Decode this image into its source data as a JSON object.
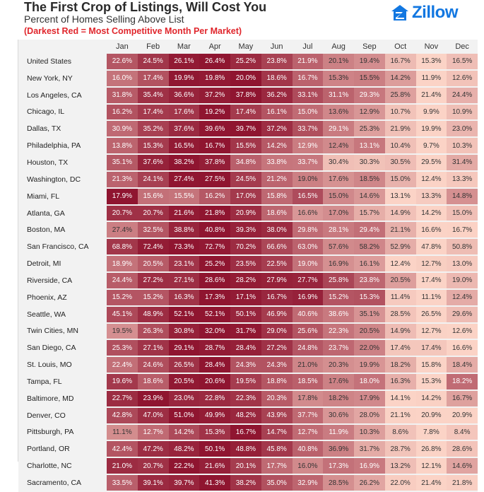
{
  "title": "The First Crop of Listings, Will Cost You",
  "subtitle": "Percent of Homes Selling Above List",
  "note": "(Darkest Red = Most Competitive Month Per Market)",
  "logo": {
    "text": "Zillow",
    "icon": "zillow-house-icon",
    "color": "#1277e1"
  },
  "colors": {
    "darkest": "#8f1530",
    "light": "#fbd3c6",
    "note": "#e0262c",
    "background": "#f2f2f2"
  },
  "chart_data": {
    "type": "heatmap",
    "title": "The First Crop of Listings, Will Cost You",
    "subtitle": "Percent of Homes Selling Above List",
    "annotation": "(Darkest Red = Most Competitive Month Per Market)",
    "columns": [
      "Jan",
      "Feb",
      "Mar",
      "Apr",
      "May",
      "Jun",
      "Jul",
      "Aug",
      "Sep",
      "Oct",
      "Nov",
      "Dec"
    ],
    "rows": [
      {
        "market": "United States",
        "values": [
          "22.6%",
          "24.5%",
          "26.1%",
          "26.4%",
          "25.2%",
          "23.8%",
          "21.9%",
          "20.1%",
          "19.4%",
          "16.7%",
          "15.3%",
          "16.5%"
        ]
      },
      {
        "market": "New York, NY",
        "values": [
          "16.0%",
          "17.4%",
          "19.9%",
          "19.8%",
          "20.0%",
          "18.6%",
          "16.7%",
          "15.3%",
          "15.5%",
          "14.2%",
          "11.9%",
          "12.6%"
        ]
      },
      {
        "market": "Los Angeles, CA",
        "values": [
          "31.8%",
          "35.4%",
          "36.6%",
          "37.2%",
          "37.8%",
          "36.2%",
          "33.1%",
          "31.1%",
          "29.3%",
          "25.8%",
          "21.4%",
          "24.4%"
        ]
      },
      {
        "market": "Chicago, IL",
        "values": [
          "16.2%",
          "17.4%",
          "17.6%",
          "19.2%",
          "17.4%",
          "16.1%",
          "15.0%",
          "13.6%",
          "12.9%",
          "10.7%",
          "9.9%",
          "10.9%"
        ]
      },
      {
        "market": "Dallas, TX",
        "values": [
          "30.9%",
          "35.2%",
          "37.6%",
          "39.6%",
          "39.7%",
          "37.2%",
          "33.7%",
          "29.1%",
          "25.3%",
          "21.9%",
          "19.9%",
          "23.0%"
        ]
      },
      {
        "market": "Philadelphia, PA",
        "values": [
          "13.8%",
          "15.3%",
          "16.5%",
          "16.7%",
          "15.5%",
          "14.2%",
          "12.9%",
          "12.4%",
          "13.1%",
          "10.4%",
          "9.7%",
          "10.3%"
        ]
      },
      {
        "market": "Houston, TX",
        "values": [
          "35.1%",
          "37.6%",
          "38.2%",
          "37.8%",
          "34.8%",
          "33.8%",
          "33.7%",
          "30.4%",
          "30.3%",
          "30.5%",
          "29.5%",
          "31.4%"
        ]
      },
      {
        "market": "Washington, DC",
        "values": [
          "21.3%",
          "24.1%",
          "27.4%",
          "27.5%",
          "24.5%",
          "21.2%",
          "19.0%",
          "17.6%",
          "18.5%",
          "15.0%",
          "12.4%",
          "13.3%"
        ]
      },
      {
        "market": "Miami, FL",
        "values": [
          "17.9%",
          "15.6%",
          "15.5%",
          "16.2%",
          "17.0%",
          "15.8%",
          "16.5%",
          "15.0%",
          "14.6%",
          "13.1%",
          "13.3%",
          "14.8%"
        ]
      },
      {
        "market": "Atlanta, GA",
        "values": [
          "20.7%",
          "20.7%",
          "21.6%",
          "21.8%",
          "20.9%",
          "18.6%",
          "16.6%",
          "17.0%",
          "15.7%",
          "14.9%",
          "14.2%",
          "15.0%"
        ]
      },
      {
        "market": "Boston, MA",
        "values": [
          "27.4%",
          "32.5%",
          "38.8%",
          "40.8%",
          "39.3%",
          "38.0%",
          "29.8%",
          "28.1%",
          "29.4%",
          "21.1%",
          "16.6%",
          "16.7%"
        ]
      },
      {
        "market": "San Francisco, CA",
        "values": [
          "68.8%",
          "72.4%",
          "73.3%",
          "72.7%",
          "70.2%",
          "66.6%",
          "63.0%",
          "57.6%",
          "58.2%",
          "52.9%",
          "47.8%",
          "50.8%"
        ]
      },
      {
        "market": "Detroit, MI",
        "values": [
          "18.9%",
          "20.5%",
          "23.1%",
          "25.2%",
          "23.5%",
          "22.5%",
          "19.0%",
          "16.9%",
          "16.1%",
          "12.4%",
          "12.7%",
          "13.0%"
        ]
      },
      {
        "market": "Riverside, CA",
        "values": [
          "24.4%",
          "27.2%",
          "27.1%",
          "28.6%",
          "28.2%",
          "27.9%",
          "27.7%",
          "25.8%",
          "23.8%",
          "20.5%",
          "17.4%",
          "19.0%"
        ]
      },
      {
        "market": "Phoenix, AZ",
        "values": [
          "15.2%",
          "15.2%",
          "16.3%",
          "17.3%",
          "17.1%",
          "16.7%",
          "16.9%",
          "15.2%",
          "15.3%",
          "11.4%",
          "11.1%",
          "12.4%"
        ]
      },
      {
        "market": "Seattle, WA",
        "values": [
          "45.1%",
          "48.9%",
          "52.1%",
          "52.1%",
          "50.1%",
          "46.9%",
          "40.6%",
          "38.6%",
          "35.1%",
          "28.5%",
          "26.5%",
          "29.6%"
        ]
      },
      {
        "market": "Twin Cities, MN",
        "values": [
          "19.5%",
          "26.3%",
          "30.8%",
          "32.0%",
          "31.7%",
          "29.0%",
          "25.6%",
          "22.3%",
          "20.5%",
          "14.9%",
          "12.7%",
          "12.6%"
        ]
      },
      {
        "market": "San Diego, CA",
        "values": [
          "25.3%",
          "27.1%",
          "29.1%",
          "28.7%",
          "28.4%",
          "27.2%",
          "24.8%",
          "23.7%",
          "22.0%",
          "17.4%",
          "17.4%",
          "16.6%"
        ]
      },
      {
        "market": "St. Louis, MO",
        "values": [
          "22.4%",
          "24.6%",
          "26.5%",
          "28.4%",
          "24.3%",
          "24.3%",
          "21.0%",
          "20.3%",
          "19.9%",
          "18.2%",
          "15.8%",
          "18.4%"
        ]
      },
      {
        "market": "Tampa, FL",
        "values": [
          "19.6%",
          "18.6%",
          "20.5%",
          "20.6%",
          "19.5%",
          "18.8%",
          "18.5%",
          "17.6%",
          "18.0%",
          "16.3%",
          "15.3%",
          "18.2%"
        ]
      },
      {
        "market": "Baltimore, MD",
        "values": [
          "22.7%",
          "23.9%",
          "23.0%",
          "22.8%",
          "22.3%",
          "20.3%",
          "17.8%",
          "18.2%",
          "17.9%",
          "14.1%",
          "14.2%",
          "16.7%"
        ]
      },
      {
        "market": "Denver, CO",
        "values": [
          "42.8%",
          "47.0%",
          "51.0%",
          "49.9%",
          "48.2%",
          "43.9%",
          "37.7%",
          "30.6%",
          "28.0%",
          "21.1%",
          "20.9%",
          "20.9%"
        ]
      },
      {
        "market": "Pittsburgh, PA",
        "values": [
          "11.1%",
          "12.7%",
          "14.2%",
          "15.3%",
          "16.7%",
          "14.7%",
          "12.7%",
          "11.9%",
          "10.3%",
          "8.6%",
          "7.8%",
          "8.4%"
        ]
      },
      {
        "market": "Portland, OR",
        "values": [
          "42.4%",
          "47.2%",
          "48.2%",
          "50.1%",
          "48.8%",
          "45.8%",
          "40.8%",
          "36.9%",
          "31.7%",
          "28.7%",
          "26.8%",
          "28.6%"
        ]
      },
      {
        "market": "Charlotte, NC",
        "values": [
          "21.0%",
          "20.7%",
          "22.2%",
          "21.6%",
          "20.1%",
          "17.7%",
          "16.0%",
          "17.3%",
          "16.9%",
          "13.2%",
          "12.1%",
          "14.6%"
        ]
      },
      {
        "market": "Sacramento, CA",
        "values": [
          "33.5%",
          "39.1%",
          "39.7%",
          "41.3%",
          "38.2%",
          "35.0%",
          "32.9%",
          "28.5%",
          "26.2%",
          "22.0%",
          "21.4%",
          "21.8%"
        ]
      }
    ]
  }
}
